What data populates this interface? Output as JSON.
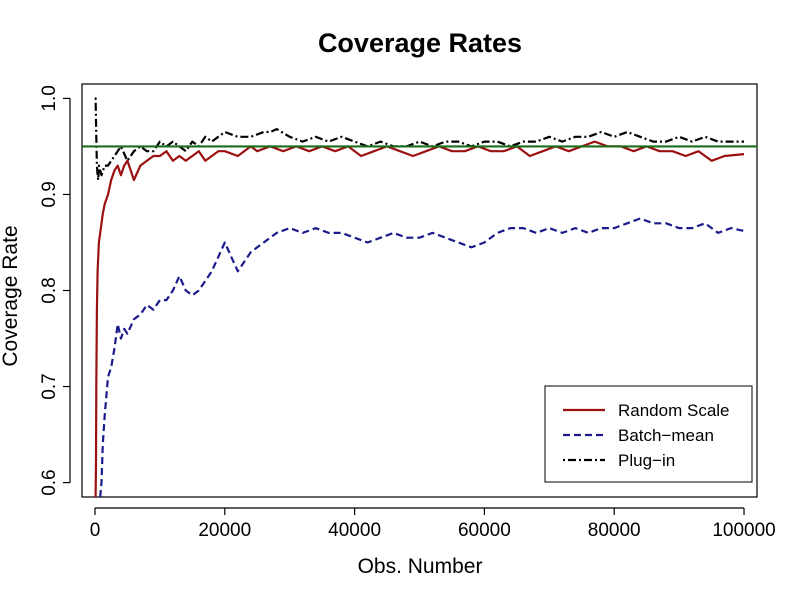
{
  "chart_data": {
    "type": "line",
    "title": "Coverage Rates",
    "xlabel": "Obs. Number",
    "ylabel": "Coverage Rate",
    "xlim": [
      -2000,
      102000
    ],
    "ylim": [
      0.585,
      1.015
    ],
    "x_ticks": [
      0,
      20000,
      40000,
      60000,
      80000,
      100000
    ],
    "x_tick_labels": [
      "0",
      "20000",
      "40000",
      "60000",
      "80000",
      "100000"
    ],
    "y_ticks": [
      0.6,
      0.7,
      0.8,
      0.9,
      1.0
    ],
    "y_tick_labels": [
      "0.6",
      "0.7",
      "0.8",
      "0.9",
      "1.0"
    ],
    "grid": false,
    "legend_position": "bottom-right",
    "reference_line": {
      "y": 0.95,
      "color": "#1a6e1a"
    },
    "series": [
      {
        "name": "Random Scale",
        "color": "#9b1010",
        "line_style": "solid",
        "x": [
          100,
          150,
          200,
          300,
          400,
          600,
          800,
          1000,
          1200,
          1500,
          2000,
          2500,
          3000,
          3500,
          4000,
          4500,
          5000,
          5500,
          6000,
          7000,
          8000,
          9000,
          10000,
          11000,
          12000,
          13000,
          14000,
          15000,
          16000,
          17000,
          18000,
          19000,
          20000,
          22000,
          24000,
          25000,
          27000,
          29000,
          31000,
          33000,
          35000,
          37000,
          39000,
          41000,
          43000,
          45000,
          47000,
          49000,
          51000,
          53000,
          55000,
          57000,
          59000,
          61000,
          63000,
          65000,
          67000,
          69000,
          71000,
          73000,
          75000,
          77000,
          79000,
          81000,
          83000,
          85000,
          87000,
          89000,
          91000,
          93000,
          95000,
          97000,
          100000
        ],
        "values": [
          0.585,
          0.62,
          0.7,
          0.78,
          0.82,
          0.85,
          0.86,
          0.87,
          0.88,
          0.89,
          0.9,
          0.915,
          0.925,
          0.93,
          0.92,
          0.93,
          0.935,
          0.925,
          0.915,
          0.93,
          0.935,
          0.94,
          0.94,
          0.945,
          0.935,
          0.94,
          0.935,
          0.94,
          0.945,
          0.935,
          0.94,
          0.945,
          0.945,
          0.94,
          0.95,
          0.945,
          0.95,
          0.945,
          0.95,
          0.945,
          0.95,
          0.945,
          0.95,
          0.94,
          0.945,
          0.95,
          0.945,
          0.94,
          0.945,
          0.95,
          0.945,
          0.945,
          0.95,
          0.945,
          0.945,
          0.95,
          0.94,
          0.945,
          0.95,
          0.945,
          0.95,
          0.955,
          0.95,
          0.95,
          0.945,
          0.95,
          0.945,
          0.945,
          0.94,
          0.945,
          0.935,
          0.94,
          0.942
        ]
      },
      {
        "name": "Batch−mean",
        "color": "#1a1a8c",
        "line_style": "dashed",
        "x": [
          800,
          1000,
          1200,
          1500,
          2000,
          2500,
          3000,
          3500,
          4000,
          4500,
          5000,
          6000,
          7000,
          8000,
          9000,
          10000,
          11000,
          12000,
          13000,
          14000,
          15000,
          16000,
          17000,
          18000,
          19000,
          20000,
          21000,
          22000,
          23000,
          24000,
          26000,
          28000,
          30000,
          32000,
          34000,
          36000,
          38000,
          40000,
          42000,
          44000,
          46000,
          48000,
          50000,
          52000,
          54000,
          56000,
          58000,
          60000,
          62000,
          64000,
          66000,
          68000,
          70000,
          72000,
          74000,
          76000,
          78000,
          80000,
          82000,
          84000,
          86000,
          88000,
          90000,
          92000,
          94000,
          96000,
          98000,
          100000
        ],
        "values": [
          0.585,
          0.6,
          0.64,
          0.67,
          0.71,
          0.72,
          0.74,
          0.765,
          0.75,
          0.76,
          0.755,
          0.77,
          0.775,
          0.785,
          0.78,
          0.79,
          0.79,
          0.8,
          0.815,
          0.8,
          0.795,
          0.8,
          0.81,
          0.82,
          0.835,
          0.85,
          0.835,
          0.82,
          0.83,
          0.84,
          0.85,
          0.86,
          0.865,
          0.86,
          0.865,
          0.86,
          0.86,
          0.855,
          0.85,
          0.855,
          0.86,
          0.855,
          0.855,
          0.86,
          0.855,
          0.85,
          0.845,
          0.85,
          0.86,
          0.865,
          0.865,
          0.86,
          0.865,
          0.86,
          0.865,
          0.86,
          0.865,
          0.865,
          0.87,
          0.875,
          0.87,
          0.87,
          0.865,
          0.865,
          0.87,
          0.86,
          0.865,
          0.862
        ]
      },
      {
        "name": "Plug−in",
        "color": "#000000",
        "line_style": "dotdash",
        "x": [
          0,
          100,
          200,
          300,
          400,
          500,
          600,
          800,
          1000,
          1500,
          2000,
          2500,
          3000,
          3500,
          4000,
          5000,
          6000,
          7000,
          8000,
          9000,
          10000,
          11000,
          12000,
          13000,
          14000,
          15000,
          16000,
          17000,
          18000,
          19000,
          20000,
          22000,
          24000,
          26000,
          27000,
          28000,
          30000,
          32000,
          34000,
          36000,
          38000,
          40000,
          42000,
          44000,
          46000,
          48000,
          50000,
          52000,
          54000,
          56000,
          58000,
          60000,
          62000,
          64000,
          66000,
          68000,
          70000,
          72000,
          74000,
          76000,
          78000,
          80000,
          82000,
          84000,
          86000,
          88000,
          90000,
          92000,
          94000,
          96000,
          98000,
          100000
        ],
        "values": [
          1.0,
          1.0,
          0.96,
          0.93,
          0.92,
          0.915,
          0.93,
          0.925,
          0.92,
          0.93,
          0.93,
          0.935,
          0.94,
          0.945,
          0.95,
          0.935,
          0.945,
          0.95,
          0.945,
          0.945,
          0.955,
          0.95,
          0.955,
          0.95,
          0.945,
          0.955,
          0.95,
          0.96,
          0.955,
          0.96,
          0.965,
          0.96,
          0.96,
          0.965,
          0.965,
          0.968,
          0.96,
          0.955,
          0.96,
          0.955,
          0.96,
          0.955,
          0.95,
          0.955,
          0.95,
          0.95,
          0.955,
          0.95,
          0.955,
          0.955,
          0.95,
          0.955,
          0.955,
          0.95,
          0.955,
          0.955,
          0.96,
          0.955,
          0.96,
          0.96,
          0.965,
          0.96,
          0.965,
          0.96,
          0.955,
          0.955,
          0.96,
          0.955,
          0.96,
          0.955,
          0.955,
          0.955
        ]
      }
    ]
  }
}
